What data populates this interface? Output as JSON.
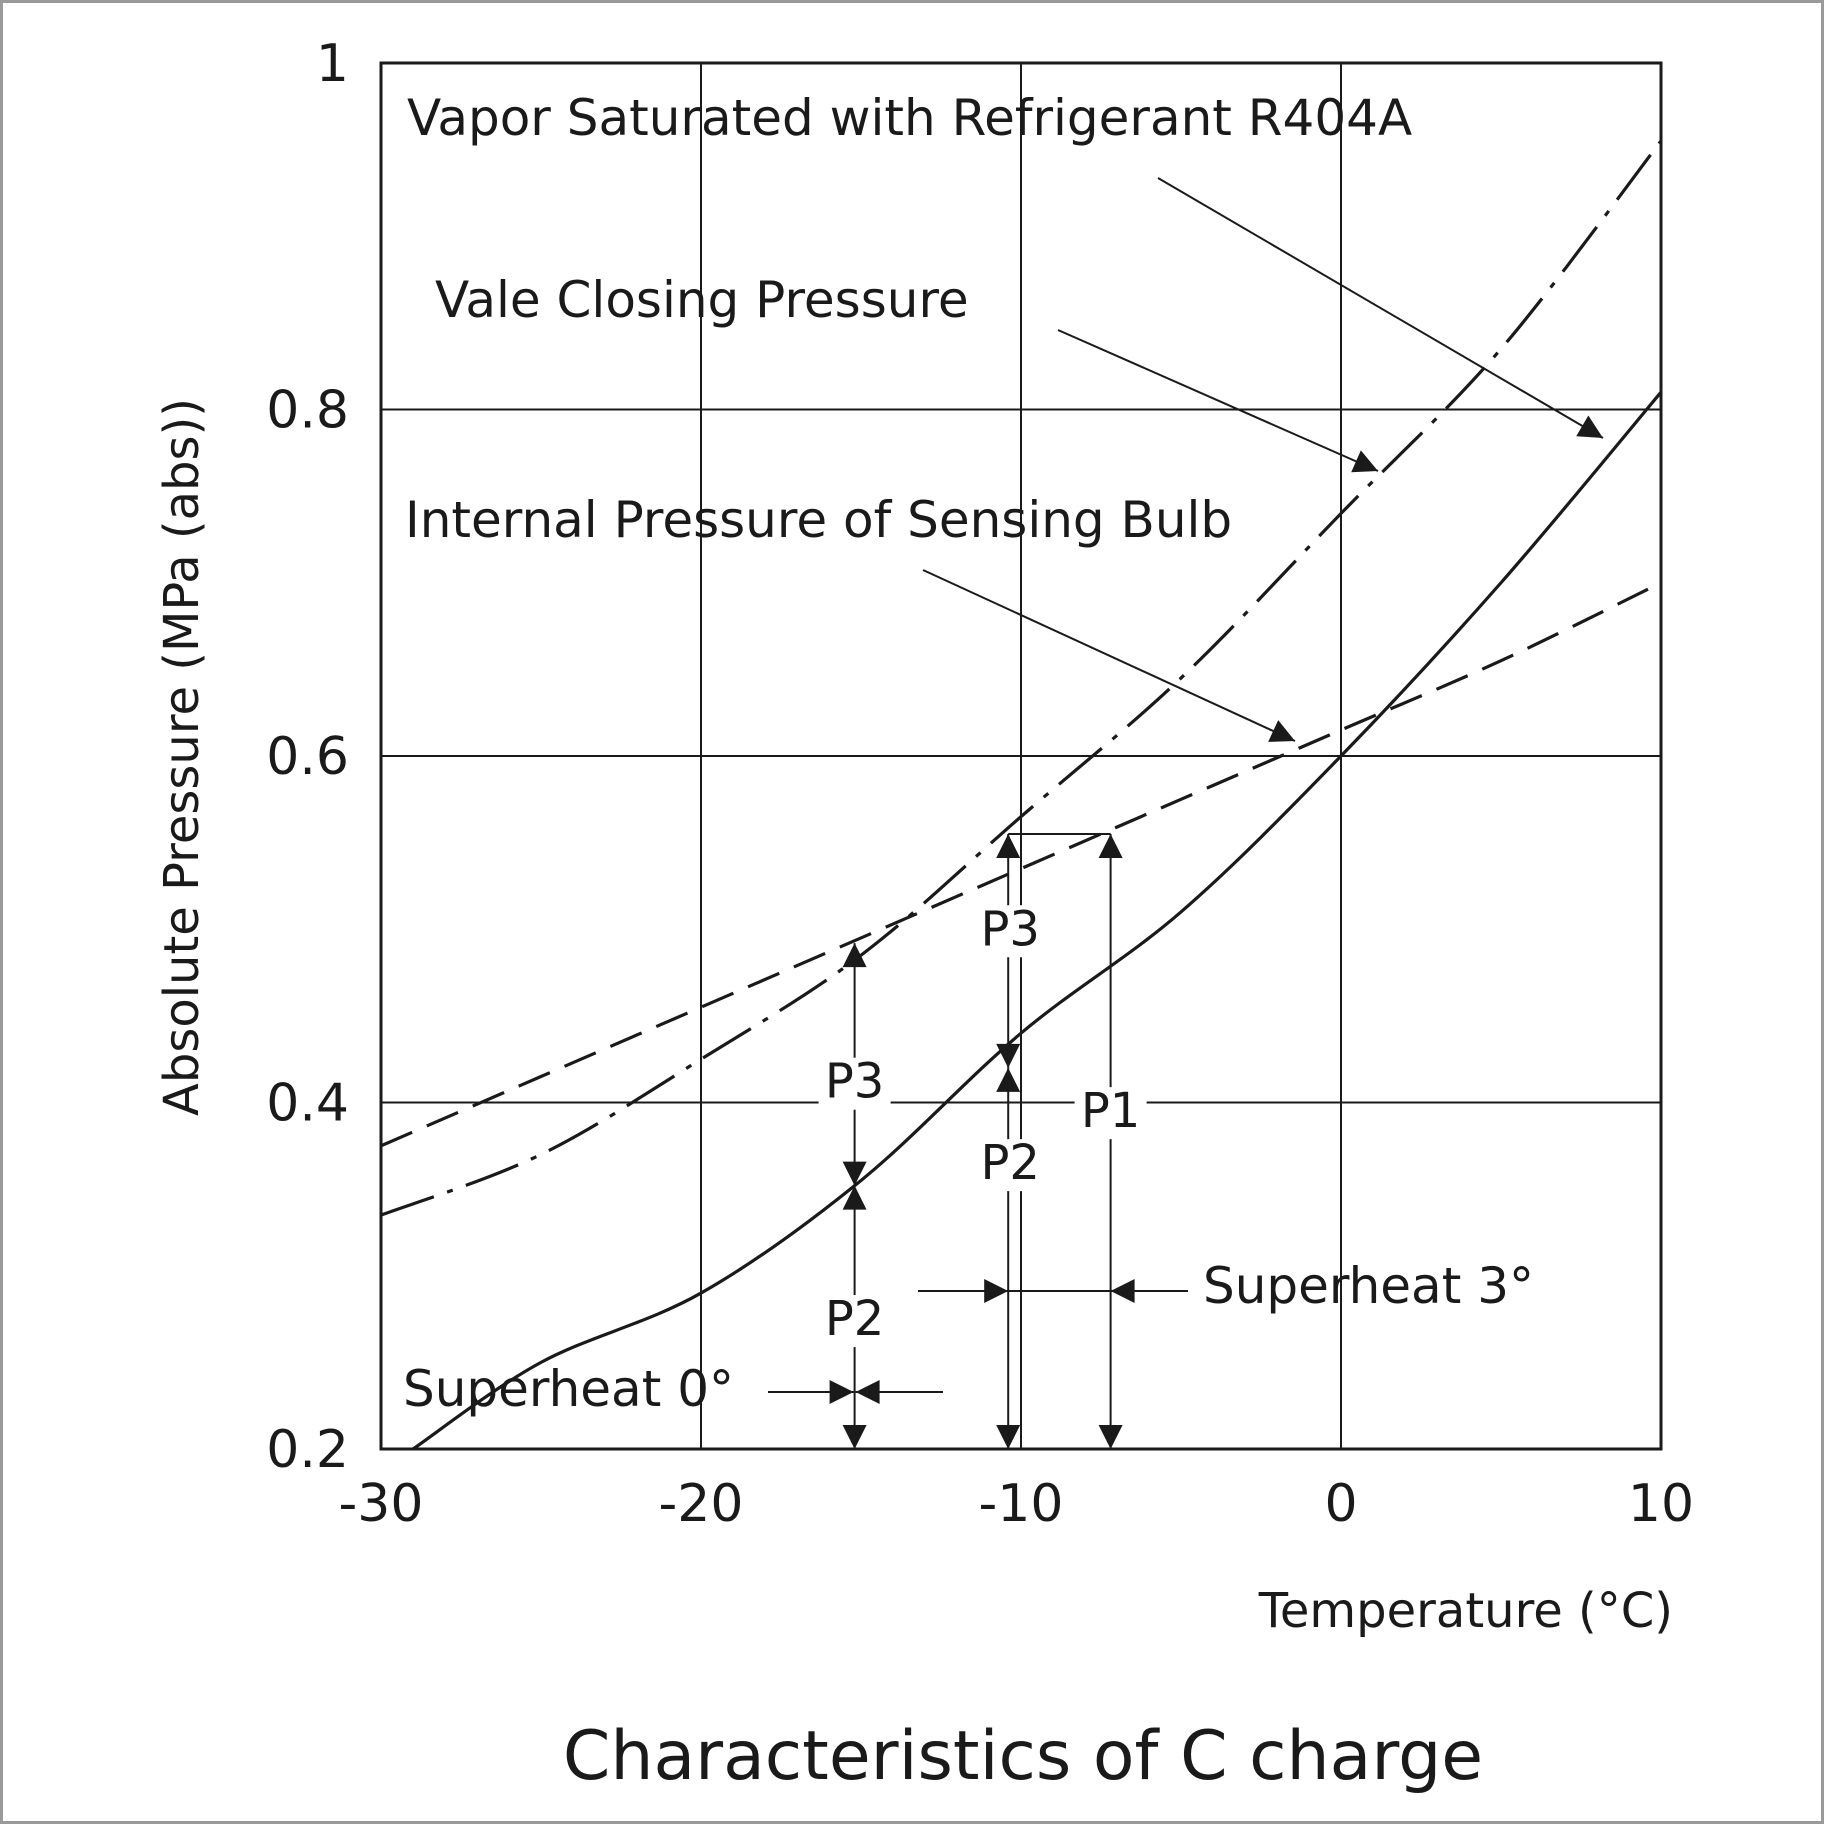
{
  "chart_data": {
    "type": "line",
    "title": "Characteristics of C charge",
    "xlabel": "Temperature (°C)",
    "ylabel": "Absolute Pressure (MPa (abs))",
    "xlim": [
      -30,
      10
    ],
    "ylim": [
      0.2,
      1.0
    ],
    "xticks": [
      -30,
      -20,
      -10,
      0,
      10
    ],
    "xtick_labels": [
      "-30",
      "-20",
      "-10",
      "0",
      "10"
    ],
    "yticks": [
      0.2,
      0.4,
      0.6,
      0.8,
      1.0
    ],
    "ytick_labels": [
      "0.2",
      "0.4",
      "0.6",
      "0.8",
      "1"
    ],
    "grid": true,
    "series": [
      {
        "name": "Vapor Saturated with Refrigerant R404A",
        "style": "solid",
        "x": [
          -29,
          -25,
          -20,
          -15,
          -10,
          -5,
          0,
          5,
          10
        ],
        "y": [
          0.2,
          0.25,
          0.29,
          0.355,
          0.44,
          0.51,
          0.6,
          0.7,
          0.81
        ]
      },
      {
        "name": "Vale Closing Pressure",
        "style": "dash-dot",
        "x": [
          -30,
          -25,
          -20,
          -15,
          -10,
          -5,
          0,
          5,
          10
        ],
        "y": [
          0.335,
          0.37,
          0.425,
          0.485,
          0.565,
          0.645,
          0.74,
          0.835,
          0.955
        ]
      },
      {
        "name": "Internal Pressure of Sensing Bulb",
        "style": "dashed",
        "x": [
          -30,
          -25,
          -20,
          -15,
          -10,
          -5,
          0,
          5,
          10
        ],
        "y": [
          0.375,
          0.415,
          0.455,
          0.495,
          0.535,
          0.575,
          0.615,
          0.655,
          0.7
        ]
      }
    ],
    "annotations": {
      "superheat0": "Superheat 0°",
      "superheat3": "Superheat 3°",
      "p1": "P1",
      "p2": "P2",
      "p3": "P3",
      "p2_left": "P2",
      "p3_left": "P3"
    },
    "markers": {
      "superheat0_x": -15.2,
      "superheat0_y_sat": 0.352,
      "superheat0_y_bulb": 0.492,
      "superheat3_x_sat": -10.4,
      "superheat3_x_bulb": -7.2,
      "superheat3_y_sat": 0.42,
      "superheat3_y_close": 0.555,
      "superheat3_y_top": 0.555,
      "superheat3_y_bulb_at_sat": 0.535
    },
    "colors": {
      "ink": "#1a1a1a",
      "background": "#ffffff",
      "frame": "#9a9a9a"
    }
  }
}
